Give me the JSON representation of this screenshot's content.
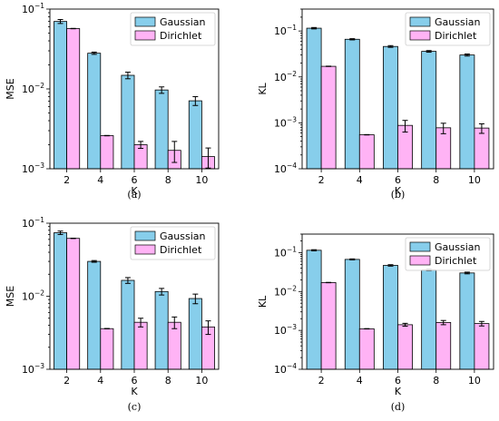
{
  "colors": {
    "gaussian": "#87ceeb",
    "dirichlet": "#ffb3f5",
    "edge": "#000000",
    "errorbar": "#000000"
  },
  "chart_data": [
    {
      "type": "bar",
      "caption": "(a)",
      "xlabel": "K",
      "ylabel": "MSE",
      "yscale": "log",
      "ylim": [
        0.001,
        0.1
      ],
      "yticks": [
        "10^-3",
        "10^-2",
        "10^-1"
      ],
      "categories": [
        "2",
        "4",
        "6",
        "8",
        "10"
      ],
      "legend_position": "top-right",
      "series": [
        {
          "name": "Gaussian",
          "color": "#87ceeb",
          "values": [
            0.07,
            0.028,
            0.0148,
            0.0097,
            0.0071
          ],
          "errors": [
            0.004,
            0.0009,
            0.0014,
            0.0009,
            0.0009
          ]
        },
        {
          "name": "Dirichlet",
          "color": "#ffb3f5",
          "values": [
            0.057,
            0.0026,
            0.002,
            0.0017,
            0.00142
          ],
          "errors": [
            0.0,
            0.0,
            0.0002,
            0.0005,
            0.0004
          ]
        }
      ]
    },
    {
      "type": "bar",
      "caption": "(b)",
      "xlabel": "K",
      "ylabel": "KL",
      "yscale": "log",
      "ylim": [
        0.0001,
        0.3
      ],
      "yticks": [
        "10^-4",
        "10^-3",
        "10^-2",
        "10^-1"
      ],
      "categories": [
        "2",
        "4",
        "6",
        "8",
        "10"
      ],
      "legend_position": "top-right",
      "series": [
        {
          "name": "Gaussian",
          "color": "#87ceeb",
          "values": [
            0.115,
            0.066,
            0.046,
            0.036,
            0.03
          ],
          "errors": [
            0.004,
            0.002,
            0.002,
            0.0015,
            0.0015
          ]
        },
        {
          "name": "Dirichlet",
          "color": "#ffb3f5",
          "values": [
            0.017,
            0.00055,
            0.00088,
            0.00078,
            0.00077
          ],
          "errors": [
            0.0,
            0.0,
            0.00025,
            0.0002,
            0.00018
          ]
        }
      ]
    },
    {
      "type": "bar",
      "caption": "(c)",
      "xlabel": "K",
      "ylabel": "MSE",
      "yscale": "log",
      "ylim": [
        0.001,
        0.1
      ],
      "yticks": [
        "10^-3",
        "10^-2",
        "10^-1"
      ],
      "categories": [
        "2",
        "4",
        "6",
        "8",
        "10"
      ],
      "legend_position": "top-right",
      "series": [
        {
          "name": "Gaussian",
          "color": "#87ceeb",
          "values": [
            0.074,
            0.03,
            0.0165,
            0.0116,
            0.0093
          ],
          "errors": [
            0.004,
            0.0008,
            0.0015,
            0.0012,
            0.0014
          ]
        },
        {
          "name": "Dirichlet",
          "color": "#ffb3f5",
          "values": [
            0.062,
            0.0036,
            0.0044,
            0.0044,
            0.0038
          ],
          "errors": [
            0.0,
            0.0,
            0.0006,
            0.0008,
            0.0008
          ]
        }
      ]
    },
    {
      "type": "bar",
      "caption": "(d)",
      "xlabel": "K",
      "ylabel": "KL",
      "yscale": "log",
      "ylim": [
        0.0001,
        0.3
      ],
      "yticks": [
        "10^-4",
        "10^-3",
        "10^-2",
        "10^-1"
      ],
      "categories": [
        "2",
        "4",
        "6",
        "8",
        "10"
      ],
      "legend_position": "top-right",
      "series": [
        {
          "name": "Gaussian",
          "color": "#87ceeb",
          "values": [
            0.115,
            0.067,
            0.047,
            0.036,
            0.03
          ],
          "errors": [
            0.004,
            0.002,
            0.002,
            0.0015,
            0.0015
          ]
        },
        {
          "name": "Dirichlet",
          "color": "#ffb3f5",
          "values": [
            0.017,
            0.0011,
            0.0014,
            0.0016,
            0.0015
          ],
          "errors": [
            0.0,
            0.0,
            0.00012,
            0.0002,
            0.0002
          ]
        }
      ]
    }
  ]
}
